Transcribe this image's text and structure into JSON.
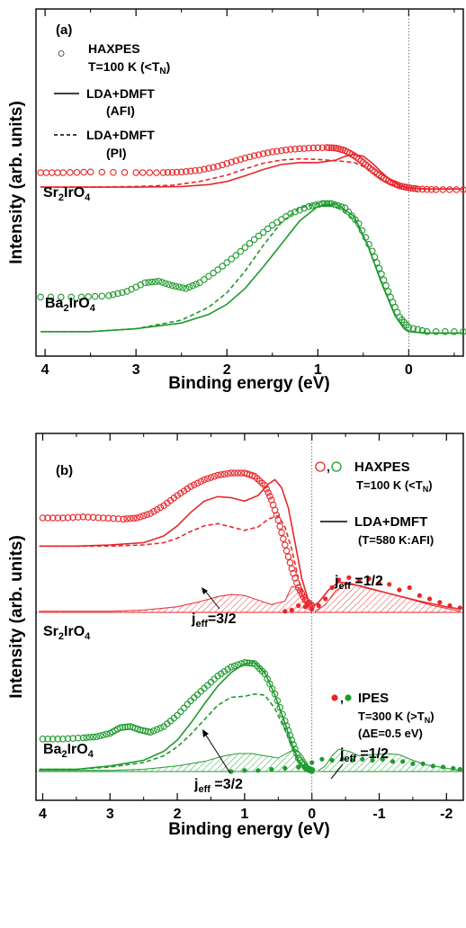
{
  "figure": {
    "ylabel": "Intensity (arb. units)",
    "xlabel": "Binding energy (eV)"
  },
  "colors": {
    "sr": "#e8262a",
    "ba": "#1f9a2e",
    "axis": "#000000",
    "zero_line": "#555555"
  },
  "panels": [
    {
      "label": "(a)",
      "x_ticks": [
        "4",
        "3",
        "2",
        "1",
        "0"
      ],
      "legend": {
        "marker_glyph": "○",
        "haxpes": "HAXPES",
        "temp_pre": "T=100 K (<T",
        "temp_sub": "N",
        "temp_post": ")",
        "solid_l1": "LDA+DMFT",
        "solid_l2": "(AFI)",
        "dashed_l1": "LDA+DMFT",
        "dashed_l2": "(PI)"
      },
      "samples": [
        {
          "pre": "Sr",
          "s1": "2",
          "mid": "IrO",
          "s2": "4"
        },
        {
          "pre": "Ba",
          "s1": "2",
          "mid": "IrO",
          "s2": "4"
        }
      ]
    },
    {
      "label": "(b)",
      "x_ticks": [
        "4",
        "3",
        "2",
        "1",
        "0",
        "-1",
        "-2"
      ],
      "legend": {
        "haxpes": "HAXPES",
        "haxpes_temp_pre": "T=100 K (<T",
        "haxpes_temp_sub": "N",
        "haxpes_temp_post": ")",
        "dmft_l1": "LDA+DMFT",
        "dmft_l2": "(T=580 K:AFI)",
        "ipes": "IPES",
        "ipes_temp_pre": "T=300 K (>T",
        "ipes_temp_sub": "N",
        "ipes_temp_post": ")",
        "ipes_res": "(ΔE=0.5 eV)",
        "sep": ","
      },
      "samples": [
        {
          "pre": "Sr",
          "s1": "2",
          "mid": "IrO",
          "s2": "4"
        },
        {
          "pre": "Ba",
          "s1": "2",
          "mid": "IrO",
          "s2": "4"
        }
      ],
      "annotations": {
        "j": "j",
        "eff": "eff",
        "sr_32": "=3/2",
        "sr_12": " =1/2",
        "ba_32": " =3/2",
        "ba_12": " =1/2"
      }
    }
  ],
  "chart_data": [
    {
      "type": "line",
      "panel": "(a)",
      "xlabel": "Binding energy (eV)",
      "ylabel": "Intensity (arb. units)",
      "xlim": [
        4.1,
        -0.6
      ],
      "ylim": [
        0,
        1.3
      ],
      "x_reversed": true,
      "vline_at": 0,
      "series": [
        {
          "name": "Sr2IrO4 HAXPES",
          "style": "circles",
          "color": "#e8262a",
          "x": [
            4.05,
            3.8,
            3.5,
            3.0,
            2.7,
            2.5,
            2.3,
            2.1,
            1.9,
            1.7,
            1.5,
            1.3,
            1.1,
            0.9,
            0.8,
            0.7,
            0.6,
            0.5,
            0.4,
            0.3,
            0.2,
            0.1,
            0.0,
            -0.1,
            -0.3,
            -0.6
          ],
          "y": [
            0.8,
            0.8,
            0.81,
            0.8,
            0.8,
            0.81,
            0.84,
            0.9,
            0.99,
            1.07,
            1.13,
            1.17,
            1.19,
            1.2,
            1.19,
            1.15,
            1.07,
            0.96,
            0.84,
            0.73,
            0.65,
            0.59,
            0.56,
            0.54,
            0.53,
            0.53
          ]
        },
        {
          "name": "Sr2IrO4 LDA+DMFT (AFI)",
          "style": "solid",
          "color": "#e8262a",
          "x": [
            4.05,
            3.5,
            3.0,
            2.5,
            2.2,
            2.0,
            1.8,
            1.6,
            1.4,
            1.2,
            1.0,
            0.8,
            0.7,
            0.6,
            0.5,
            0.4,
            0.3,
            0.2,
            0.1,
            0.0,
            -0.2,
            -0.6
          ],
          "y": [
            0.57,
            0.57,
            0.57,
            0.58,
            0.61,
            0.66,
            0.75,
            0.85,
            0.93,
            0.96,
            0.96,
            1.0,
            1.06,
            1.09,
            1.06,
            0.95,
            0.81,
            0.68,
            0.6,
            0.56,
            0.54,
            0.54
          ]
        },
        {
          "name": "Sr2IrO4 LDA+DMFT (PI)",
          "style": "dashed",
          "color": "#e8262a",
          "x": [
            4.05,
            3.5,
            3.0,
            2.6,
            2.3,
            2.0,
            1.8,
            1.6,
            1.4,
            1.2,
            1.0,
            0.8,
            0.6,
            0.5,
            0.4,
            0.3,
            0.2,
            0.1,
            0.0,
            -0.2,
            -0.6
          ],
          "y": [
            0.57,
            0.57,
            0.58,
            0.6,
            0.66,
            0.76,
            0.86,
            0.95,
            1.0,
            1.02,
            1.01,
            0.99,
            0.96,
            0.9,
            0.8,
            0.7,
            0.62,
            0.57,
            0.55,
            0.54,
            0.54
          ]
        },
        {
          "name": "Ba2IrO4 HAXPES",
          "style": "circles",
          "color": "#1f9a2e",
          "x": [
            4.05,
            3.6,
            3.3,
            3.1,
            2.9,
            2.75,
            2.6,
            2.45,
            2.3,
            2.1,
            1.9,
            1.7,
            1.5,
            1.3,
            1.1,
            0.95,
            0.85,
            0.7,
            0.55,
            0.4,
            0.3,
            0.2,
            0.1,
            0.0,
            -0.2,
            -0.6
          ],
          "y": [
            0.26,
            0.26,
            0.27,
            0.3,
            0.36,
            0.37,
            0.34,
            0.32,
            0.36,
            0.45,
            0.55,
            0.66,
            0.76,
            0.84,
            0.89,
            0.91,
            0.91,
            0.88,
            0.77,
            0.58,
            0.42,
            0.26,
            0.12,
            0.05,
            0.02,
            0.02
          ]
        },
        {
          "name": "Ba2IrO4 LDA+DMFT (AFI)",
          "style": "solid",
          "color": "#1f9a2e",
          "x": [
            4.05,
            3.5,
            3.0,
            2.5,
            2.2,
            2.0,
            1.8,
            1.6,
            1.4,
            1.2,
            1.0,
            0.8,
            0.6,
            0.45,
            0.3,
            0.15,
            0.05,
            0.0,
            -0.2,
            -0.6
          ],
          "y": [
            0.02,
            0.02,
            0.04,
            0.08,
            0.14,
            0.21,
            0.32,
            0.47,
            0.63,
            0.79,
            0.89,
            0.91,
            0.82,
            0.62,
            0.36,
            0.13,
            0.04,
            0.02,
            0.01,
            0.01
          ]
        },
        {
          "name": "Ba2IrO4 LDA+DMFT (PI)",
          "style": "dashed",
          "color": "#1f9a2e",
          "x": [
            4.05,
            3.5,
            3.0,
            2.5,
            2.2,
            2.0,
            1.8,
            1.6,
            1.4,
            1.2,
            1.0,
            0.8,
            0.6,
            0.45,
            0.3,
            0.15,
            0.05,
            0.0,
            -0.2,
            -0.6
          ],
          "y": [
            0.02,
            0.02,
            0.04,
            0.1,
            0.19,
            0.29,
            0.44,
            0.62,
            0.78,
            0.88,
            0.91,
            0.89,
            0.8,
            0.62,
            0.36,
            0.13,
            0.04,
            0.02,
            0.01,
            0.01
          ]
        }
      ]
    },
    {
      "type": "line",
      "panel": "(b)",
      "xlabel": "Binding energy (eV)",
      "ylabel": "Intensity (arb. units)",
      "xlim": [
        4.1,
        -2.25
      ],
      "ylim": [
        0,
        1.3
      ],
      "x_reversed": true,
      "vline_at": 0,
      "series": [
        {
          "name": "Sr2IrO4 HAXPES",
          "style": "circles",
          "color": "#e8262a",
          "x": [
            4.0,
            3.7,
            3.4,
            3.1,
            2.8,
            2.6,
            2.4,
            2.2,
            2.0,
            1.8,
            1.6,
            1.4,
            1.2,
            1.0,
            0.85,
            0.7,
            0.6,
            0.5,
            0.4,
            0.3,
            0.2,
            0.1,
            0.0
          ],
          "y": [
            0.84,
            0.84,
            0.85,
            0.84,
            0.83,
            0.84,
            0.88,
            0.95,
            1.04,
            1.12,
            1.18,
            1.22,
            1.24,
            1.24,
            1.21,
            1.13,
            1.0,
            0.82,
            0.6,
            0.39,
            0.22,
            0.11,
            0.06
          ]
        },
        {
          "name": "Sr2IrO4 LDA+DMFT (AFI)",
          "style": "solid",
          "color": "#e8262a",
          "x": [
            4.05,
            3.5,
            3.0,
            2.5,
            2.2,
            2.0,
            1.8,
            1.6,
            1.4,
            1.2,
            1.0,
            0.8,
            0.65,
            0.55,
            0.45,
            0.35,
            0.25,
            0.15,
            0.05,
            0.0,
            -0.1,
            -0.25,
            -0.4,
            -0.55,
            -0.8,
            -1.2,
            -1.6,
            -2.0,
            -2.2
          ],
          "y": [
            0.59,
            0.59,
            0.6,
            0.62,
            0.68,
            0.77,
            0.89,
            0.99,
            1.03,
            1.02,
            0.99,
            1.04,
            1.14,
            1.18,
            1.11,
            0.93,
            0.62,
            0.3,
            0.1,
            0.05,
            0.09,
            0.2,
            0.27,
            0.26,
            0.22,
            0.16,
            0.1,
            0.05,
            0.03
          ]
        },
        {
          "name": "Sr2IrO4 LDA+DMFT (PI)",
          "style": "dashed",
          "color": "#e8262a",
          "x": [
            4.05,
            3.5,
            3.0,
            2.5,
            2.2,
            2.0,
            1.8,
            1.6,
            1.4,
            1.2,
            1.0,
            0.8,
            0.65,
            0.5,
            0.4,
            0.3,
            0.2,
            0.1,
            0.0
          ],
          "y": [
            0.59,
            0.59,
            0.59,
            0.6,
            0.62,
            0.66,
            0.72,
            0.77,
            0.79,
            0.76,
            0.73,
            0.76,
            0.83,
            0.86,
            0.76,
            0.56,
            0.3,
            0.1,
            0.04
          ]
        },
        {
          "name": "Sr2IrO4 jeff=3/2 (hatched)",
          "style": "filled",
          "color": "#e8262a",
          "x": [
            4.05,
            3.0,
            2.5,
            2.0,
            1.7,
            1.4,
            1.2,
            1.0,
            0.8,
            0.6,
            0.4,
            0.3,
            0.2,
            0.1,
            0.05,
            0.0
          ],
          "y": [
            0.01,
            0.01,
            0.02,
            0.05,
            0.09,
            0.14,
            0.16,
            0.15,
            0.11,
            0.07,
            0.1,
            0.23,
            0.22,
            0.1,
            0.03,
            0.01
          ]
        },
        {
          "name": "Sr2IrO4 jeff=1/2 (hatched)",
          "style": "filled",
          "color": "#e8262a",
          "x": [
            -0.05,
            -0.2,
            -0.35,
            -0.5,
            -0.7,
            -0.9,
            -1.2,
            -1.5,
            -1.8,
            -2.05,
            -2.2
          ],
          "y": [
            0.01,
            0.07,
            0.19,
            0.25,
            0.24,
            0.21,
            0.16,
            0.11,
            0.06,
            0.03,
            0.01
          ]
        },
        {
          "name": "Sr2IrO4 IPES",
          "style": "dots",
          "color": "#e8262a",
          "x": [
            0.4,
            0.3,
            0.2,
            0.1,
            0.0,
            -0.1,
            -0.2,
            -0.3,
            -0.4,
            -0.55,
            -0.7,
            -0.85,
            -1.0,
            -1.15,
            -1.3,
            -1.45,
            -1.6,
            -1.75,
            -1.9,
            -2.05,
            -2.2
          ],
          "y": [
            0.01,
            0.02,
            0.06,
            0.05,
            0.03,
            0.06,
            0.12,
            0.22,
            0.29,
            0.31,
            0.28,
            0.3,
            0.26,
            0.25,
            0.2,
            0.22,
            0.15,
            0.12,
            0.09,
            0.06,
            0.04
          ]
        },
        {
          "name": "Ba2IrO4 HAXPES",
          "style": "circles",
          "color": "#1f9a2e",
          "x": [
            4.0,
            3.7,
            3.4,
            3.2,
            3.0,
            2.85,
            2.7,
            2.55,
            2.4,
            2.2,
            2.0,
            1.8,
            1.6,
            1.4,
            1.2,
            1.0,
            0.85,
            0.7,
            0.55,
            0.4,
            0.3,
            0.2,
            0.1,
            0.05,
            0.0
          ],
          "y": [
            0.29,
            0.29,
            0.3,
            0.31,
            0.34,
            0.39,
            0.4,
            0.37,
            0.35,
            0.4,
            0.5,
            0.63,
            0.74,
            0.85,
            0.93,
            0.97,
            0.96,
            0.87,
            0.69,
            0.45,
            0.28,
            0.12,
            0.04,
            0.02,
            0.01
          ]
        },
        {
          "name": "Ba2IrO4 LDA+DMFT (AFI)",
          "style": "solid",
          "color": "#1f9a2e",
          "x": [
            4.05,
            3.5,
            3.0,
            2.5,
            2.2,
            2.0,
            1.8,
            1.6,
            1.4,
            1.2,
            1.0,
            0.85,
            0.7,
            0.55,
            0.4,
            0.3,
            0.2,
            0.1,
            0.05,
            0.0
          ],
          "y": [
            0.02,
            0.02,
            0.05,
            0.1,
            0.18,
            0.28,
            0.43,
            0.6,
            0.76,
            0.88,
            0.96,
            0.97,
            0.88,
            0.68,
            0.43,
            0.25,
            0.1,
            0.03,
            0.01,
            0.01
          ]
        },
        {
          "name": "Ba2IrO4 LDA+DMFT (PI)",
          "style": "dashed",
          "color": "#1f9a2e",
          "x": [
            4.05,
            3.5,
            3.0,
            2.5,
            2.2,
            2.0,
            1.8,
            1.6,
            1.4,
            1.2,
            1.0,
            0.85,
            0.7,
            0.55,
            0.4,
            0.3,
            0.2,
            0.1,
            0.0
          ],
          "y": [
            0.02,
            0.02,
            0.04,
            0.08,
            0.14,
            0.22,
            0.33,
            0.46,
            0.59,
            0.66,
            0.67,
            0.69,
            0.68,
            0.56,
            0.37,
            0.22,
            0.09,
            0.03,
            0.01
          ]
        },
        {
          "name": "Ba2IrO4 jeff=3/2 (hatched)",
          "style": "filled",
          "color": "#1f9a2e",
          "x": [
            4.05,
            3.0,
            2.5,
            2.0,
            1.6,
            1.3,
            1.1,
            0.9,
            0.7,
            0.5,
            0.35,
            0.25,
            0.15,
            0.05,
            0.0
          ],
          "y": [
            0.01,
            0.01,
            0.02,
            0.05,
            0.09,
            0.14,
            0.16,
            0.16,
            0.14,
            0.12,
            0.17,
            0.2,
            0.15,
            0.05,
            0.01
          ]
        },
        {
          "name": "Ba2IrO4 jeff=1/2 (hatched)",
          "style": "filled",
          "color": "#1f9a2e",
          "x": [
            -0.1,
            -0.2,
            -0.3,
            -0.4,
            -0.55,
            -0.7,
            -0.9,
            -1.1,
            -1.3,
            -1.5,
            -1.7,
            -1.9,
            -2.1,
            -2.2
          ],
          "y": [
            0.01,
            0.05,
            0.14,
            0.2,
            0.18,
            0.14,
            0.15,
            0.16,
            0.15,
            0.1,
            0.06,
            0.04,
            0.02,
            0.01
          ]
        },
        {
          "name": "Ba2IrO4 IPES",
          "style": "dots",
          "color": "#1f9a2e",
          "x": [
            1.2,
            1.0,
            0.8,
            0.6,
            0.4,
            0.2,
            0.0,
            -0.15,
            -0.3,
            -0.45,
            -0.6,
            -0.75,
            -0.9,
            -1.05,
            -1.2,
            -1.35,
            -1.5,
            -1.65,
            -1.8,
            -1.95,
            -2.1,
            -2.2
          ],
          "y": [
            0.0,
            0.01,
            0.01,
            0.02,
            0.03,
            0.04,
            0.08,
            0.11,
            0.1,
            0.11,
            0.1,
            0.11,
            0.1,
            0.11,
            0.09,
            0.09,
            0.07,
            0.07,
            0.05,
            0.04,
            0.03,
            0.02
          ]
        }
      ]
    }
  ]
}
